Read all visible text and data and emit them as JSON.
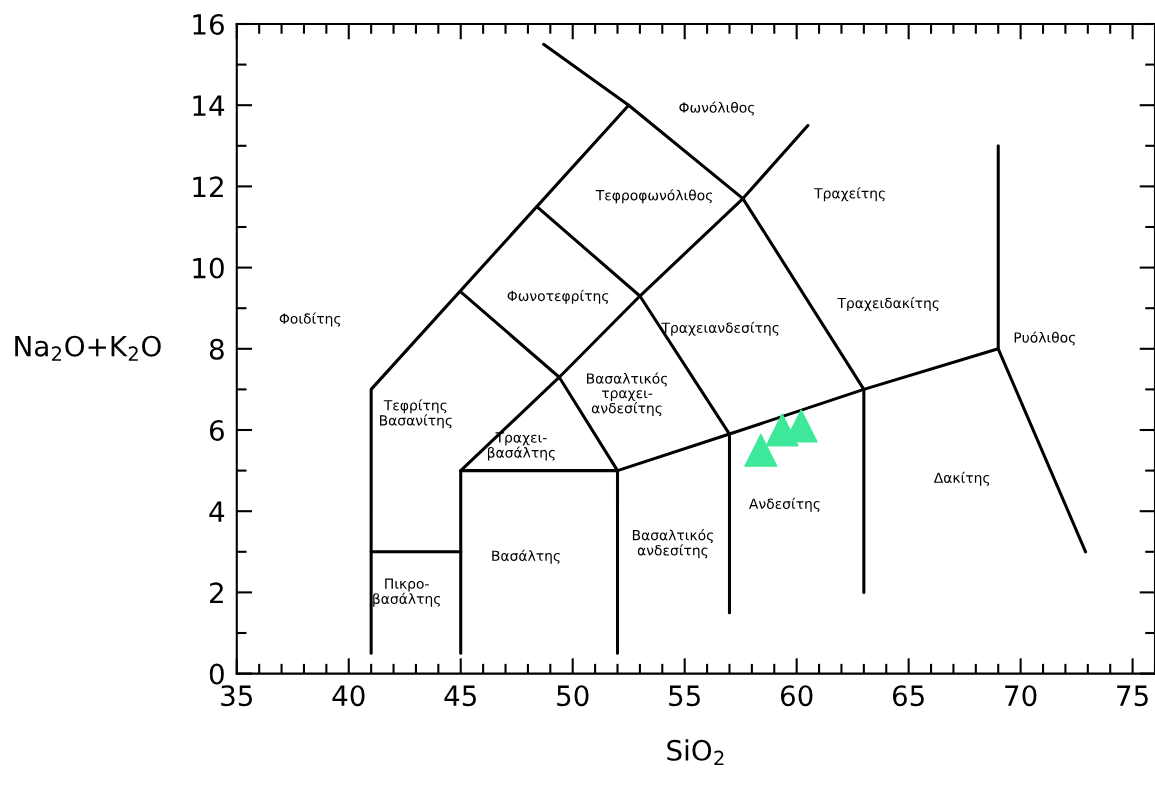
{
  "chart_data": {
    "type": "scatter",
    "xlabel": "SiO$_{2}$",
    "ylabel": "Na$_{2}$O+K$_{2}$O",
    "xlim": [
      35,
      76
    ],
    "ylim": [
      0,
      16
    ],
    "xticks": [
      35,
      40,
      45,
      50,
      55,
      60,
      65,
      70,
      75
    ],
    "yticks": [
      0,
      2,
      4,
      6,
      8,
      10,
      12,
      14,
      16
    ],
    "grid": false,
    "legend": false,
    "series": [
      {
        "type": "line",
        "color": "#000000",
        "x": [
          41,
          41,
          52.5
        ],
        "values": [
          0.5,
          7,
          14
        ]
      },
      {
        "type": "line",
        "color": "#000000",
        "x": [
          48.7,
          52.5,
          57.6,
          63
        ],
        "values": [
          15.5,
          14,
          11.7,
          7
        ]
      },
      {
        "type": "line",
        "color": "#000000",
        "x": [
          41,
          45
        ],
        "values": [
          3,
          3
        ]
      },
      {
        "type": "line",
        "color": "#000000",
        "x": [
          45,
          45,
          52
        ],
        "values": [
          0.5,
          5,
          5
        ]
      },
      {
        "type": "line",
        "color": "#000000",
        "x": [
          52,
          52,
          57,
          63,
          69
        ],
        "values": [
          0.5,
          5,
          5.9,
          7,
          8
        ]
      },
      {
        "type": "line",
        "color": "#000000",
        "x": [
          45,
          49.4,
          53,
          57.6,
          60.5
        ],
        "values": [
          5,
          7.3,
          9.3,
          11.7,
          13.5
        ]
      },
      {
        "type": "line",
        "color": "#000000",
        "x": [
          45,
          49.4,
          52
        ],
        "values": [
          9.4,
          7.3,
          5
        ]
      },
      {
        "type": "line",
        "color": "#000000",
        "x": [
          48.4,
          53,
          57
        ],
        "values": [
          11.5,
          9.3,
          5.9
        ]
      },
      {
        "type": "line",
        "color": "#000000",
        "x": [
          57,
          57
        ],
        "values": [
          1.5,
          5.9
        ]
      },
      {
        "type": "line",
        "color": "#000000",
        "x": [
          63,
          63
        ],
        "values": [
          2,
          7
        ]
      },
      {
        "type": "line",
        "color": "#000000",
        "x": [
          69,
          69,
          72.9
        ],
        "values": [
          13,
          8,
          3
        ]
      },
      {
        "color": "#3de89a",
        "marker": "triangle",
        "x": [
          58.4,
          59.35,
          60.2
        ],
        "values": [
          5.5,
          6.0,
          6.1
        ]
      }
    ],
    "annotations": [
      "Φοιδίτης",
      "Τεφρίτης\nΒασανίτης",
      "Πικρο-\nβασάλτης",
      "Βασάλτης",
      "Τραχει-\nβασάλτης",
      "Βασαλτικός\nτραχει-\nανδεσίτης",
      "Φωνοτεφρίτης",
      "Τεφροφωνόλιθος",
      "Φωνόλιθος",
      "Τραχείτης",
      "Τραχειανδεσίτης",
      "Τραχειδακίτης",
      "Ρυόλιθος",
      "Βασαλτικός\nανδεσίτης",
      "Ανδεσίτης",
      "Δακίτης"
    ]
  }
}
